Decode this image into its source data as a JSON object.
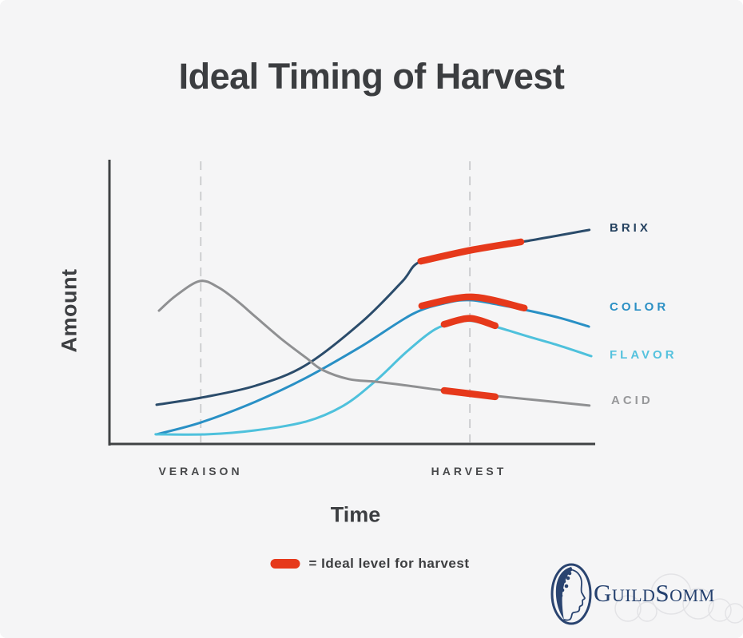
{
  "title": "Ideal Timing of Harvest",
  "chart_data": {
    "type": "line",
    "title": "Ideal Timing of Harvest",
    "xlabel": "Time",
    "ylabel": "Amount",
    "x_ticks": [
      "VERAISON",
      "HARVEST"
    ],
    "grid": false,
    "axis_numeric": false,
    "x_range_norm": [
      0,
      1
    ],
    "y_range_norm": [
      0,
      1
    ],
    "events": [
      {
        "label": "VERAISON",
        "x": 0.188
      },
      {
        "label": "HARVEST",
        "x": 0.742
      }
    ],
    "series": [
      {
        "name": "BRIX",
        "color": "#2b4c6b",
        "label_color": "#24415f",
        "points": [
          [
            0.097,
            0.138
          ],
          [
            0.189,
            0.163
          ],
          [
            0.301,
            0.205
          ],
          [
            0.405,
            0.278
          ],
          [
            0.52,
            0.43
          ],
          [
            0.602,
            0.57
          ],
          [
            0.641,
            0.643
          ],
          [
            0.742,
            0.685
          ],
          [
            0.849,
            0.711
          ],
          [
            0.988,
            0.753
          ]
        ]
      },
      {
        "name": "COLOR",
        "color": "#2990c5",
        "label_color": "#2a8fc4",
        "points": [
          [
            0.097,
            0.034
          ],
          [
            0.189,
            0.076
          ],
          [
            0.301,
            0.149
          ],
          [
            0.405,
            0.233
          ],
          [
            0.52,
            0.345
          ],
          [
            0.625,
            0.458
          ],
          [
            0.696,
            0.497
          ],
          [
            0.742,
            0.506
          ],
          [
            0.794,
            0.492
          ],
          [
            0.855,
            0.472
          ],
          [
            0.926,
            0.444
          ],
          [
            0.987,
            0.413
          ]
        ]
      },
      {
        "name": "FLAVOR",
        "color": "#4ec1dc",
        "label_color": "#55c2de",
        "points": [
          [
            0.095,
            0.034
          ],
          [
            0.202,
            0.034
          ],
          [
            0.301,
            0.048
          ],
          [
            0.405,
            0.079
          ],
          [
            0.482,
            0.135
          ],
          [
            0.548,
            0.222
          ],
          [
            0.613,
            0.326
          ],
          [
            0.671,
            0.404
          ],
          [
            0.715,
            0.427
          ],
          [
            0.745,
            0.433
          ],
          [
            0.794,
            0.413
          ],
          [
            0.86,
            0.379
          ],
          [
            0.926,
            0.346
          ],
          [
            0.992,
            0.309
          ]
        ]
      },
      {
        "name": "ACID",
        "color": "#8f9092",
        "label_color": "#97989a",
        "points": [
          [
            0.102,
            0.469
          ],
          [
            0.137,
            0.522
          ],
          [
            0.186,
            0.573
          ],
          [
            0.224,
            0.551
          ],
          [
            0.263,
            0.503
          ],
          [
            0.301,
            0.447
          ],
          [
            0.355,
            0.368
          ],
          [
            0.405,
            0.303
          ],
          [
            0.438,
            0.261
          ],
          [
            0.493,
            0.228
          ],
          [
            0.548,
            0.219
          ],
          [
            0.602,
            0.208
          ],
          [
            0.689,
            0.188
          ],
          [
            0.742,
            0.18
          ],
          [
            0.794,
            0.169
          ],
          [
            0.893,
            0.152
          ],
          [
            0.988,
            0.135
          ]
        ]
      }
    ],
    "ideal_color": "#e6391b",
    "legend_label": "= Ideal level for harvest",
    "ideal_segments": [
      {
        "series": "BRIX",
        "points": [
          [
            0.641,
            0.643
          ],
          [
            0.745,
            0.682
          ],
          [
            0.847,
            0.711
          ]
        ]
      },
      {
        "series": "COLOR",
        "points": [
          [
            0.643,
            0.486
          ],
          [
            0.745,
            0.517
          ],
          [
            0.854,
            0.478
          ]
        ]
      },
      {
        "series": "FLAVOR",
        "points": [
          [
            0.689,
            0.421
          ],
          [
            0.742,
            0.442
          ],
          [
            0.794,
            0.416
          ]
        ]
      },
      {
        "series": "ACID",
        "points": [
          [
            0.689,
            0.188
          ],
          [
            0.742,
            0.177
          ],
          [
            0.794,
            0.166
          ]
        ]
      }
    ]
  },
  "logo": {
    "wordmark": "GuildSomm",
    "navy": "#2a4470",
    "ornament_color": "#e2e2e5"
  }
}
